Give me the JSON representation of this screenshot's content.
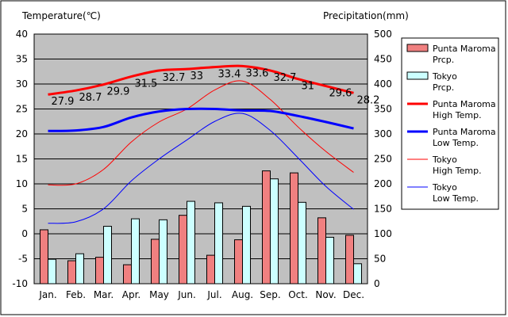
{
  "chart_data": {
    "type": "bar",
    "title_left": "Temperature(℃)",
    "title_right": "Precipitation(mm)",
    "categories": [
      "Jan.",
      "Feb.",
      "Mar.",
      "Apr.",
      "May",
      "Jun.",
      "Jul.",
      "Aug.",
      "Sep.",
      "Oct.",
      "Nov.",
      "Dec."
    ],
    "y_left": {
      "min": -10,
      "max": 40,
      "ticks": [
        40,
        35,
        30,
        25,
        20,
        15,
        10,
        5,
        0,
        -5,
        -10
      ]
    },
    "y_right": {
      "min": 0,
      "max": 500,
      "ticks": [
        500,
        450,
        400,
        350,
        300,
        250,
        200,
        150,
        100,
        50,
        0
      ]
    },
    "grid": true,
    "legend_position": "right",
    "bar_series": [
      {
        "name": "Punta Maroma Prcp.",
        "label_lines": [
          "Punta Maroma",
          "Prcp."
        ],
        "color": "#f08080",
        "values": [
          108,
          46,
          53,
          38,
          89,
          137,
          57,
          88,
          226,
          222,
          132,
          97
        ]
      },
      {
        "name": "Tokyo Prcp.",
        "label_lines": [
          "Tokyo",
          "Prcp."
        ],
        "color": "#ccffff",
        "values": [
          49,
          60,
          115,
          130,
          128,
          165,
          162,
          155,
          210,
          163,
          93,
          40
        ]
      }
    ],
    "line_series": [
      {
        "name": "Punta Maroma High Temp.",
        "label_lines": [
          "Punta Maroma",
          "High Temp."
        ],
        "color": "#ff0000",
        "width": 3,
        "values": [
          27.9,
          28.7,
          29.9,
          31.5,
          32.7,
          33.0,
          33.4,
          33.6,
          32.7,
          31.0,
          29.6,
          28.2
        ],
        "labels": [
          "27.9",
          "28.7",
          "29.9",
          "31.5",
          "32.7",
          "33",
          "33.4",
          "33.6",
          "32.7",
          "31",
          "29.6",
          "28.2"
        ]
      },
      {
        "name": "Punta Maroma Low Temp.",
        "label_lines": [
          "Punta Maroma",
          "Low Temp."
        ],
        "color": "#0000ff",
        "width": 3,
        "values": [
          20.6,
          20.7,
          21.4,
          23.3,
          24.5,
          25.0,
          25.0,
          24.7,
          24.6,
          23.6,
          22.4,
          21.1
        ]
      },
      {
        "name": "Tokyo High Temp.",
        "label_lines": [
          "Tokyo",
          "High Temp."
        ],
        "color": "#ff0000",
        "width": 1,
        "values": [
          9.8,
          10.0,
          12.9,
          18.4,
          22.4,
          25.0,
          28.8,
          30.6,
          26.9,
          21.4,
          16.5,
          12.3
        ]
      },
      {
        "name": "Tokyo Low Temp.",
        "label_lines": [
          "Tokyo",
          "Low Temp."
        ],
        "color": "#0000ff",
        "width": 1,
        "values": [
          2.1,
          2.4,
          5.0,
          10.6,
          15.0,
          18.8,
          22.5,
          24.1,
          20.7,
          15.2,
          9.5,
          4.9
        ]
      }
    ]
  }
}
